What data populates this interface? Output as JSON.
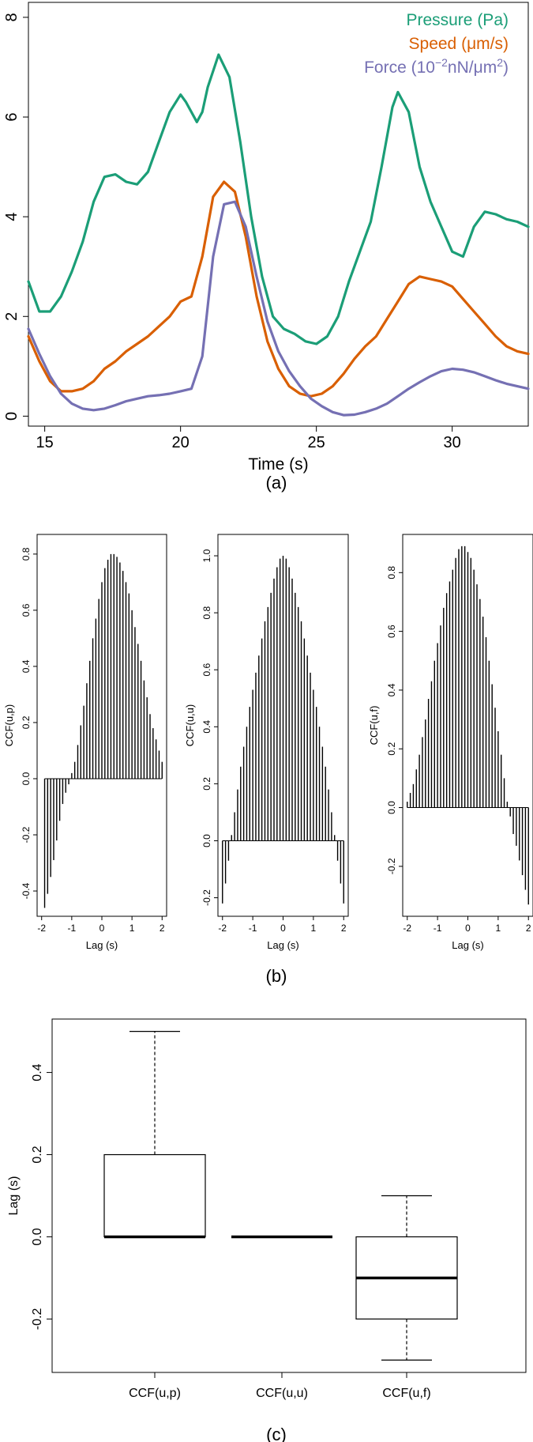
{
  "panel_labels": [
    "(a)",
    "(b)",
    "(c)"
  ],
  "chart_data": [
    {
      "type": "line",
      "xlabel": "Time (s)",
      "ylabel": "",
      "xlim": [
        14.4,
        32.8
      ],
      "ylim": [
        -0.2,
        8.3
      ],
      "xticks": [
        15,
        20,
        25,
        30
      ],
      "yticks": [
        0,
        2,
        4,
        6,
        8
      ],
      "legend_position": "top-right",
      "series": [
        {
          "name": "Pressure (Pa)",
          "color": "#1b9e77",
          "x": [
            14.4,
            14.8,
            15.2,
            15.6,
            16.0,
            16.4,
            16.8,
            17.2,
            17.6,
            18.0,
            18.4,
            18.8,
            19.2,
            19.6,
            20.0,
            20.2,
            20.6,
            20.8,
            21.0,
            21.4,
            21.8,
            22.2,
            22.6,
            23.0,
            23.4,
            23.8,
            24.2,
            24.6,
            25.0,
            25.4,
            25.8,
            26.2,
            26.6,
            27.0,
            27.4,
            27.8,
            28.0,
            28.4,
            28.8,
            29.2,
            29.6,
            30.0,
            30.4,
            30.8,
            31.2,
            31.6,
            32.0,
            32.4,
            32.8
          ],
          "y": [
            2.7,
            2.1,
            2.1,
            2.4,
            2.9,
            3.5,
            4.3,
            4.8,
            4.85,
            4.7,
            4.65,
            4.9,
            5.5,
            6.1,
            6.45,
            6.3,
            5.9,
            6.1,
            6.6,
            7.25,
            6.8,
            5.5,
            4.0,
            2.8,
            2.0,
            1.75,
            1.65,
            1.5,
            1.45,
            1.6,
            2.0,
            2.7,
            3.3,
            3.9,
            5.0,
            6.2,
            6.5,
            6.1,
            5.0,
            4.3,
            3.8,
            3.3,
            3.2,
            3.8,
            4.1,
            4.05,
            3.95,
            3.9,
            3.8
          ]
        },
        {
          "name": "Speed (μm/s)",
          "color": "#d95f02",
          "x": [
            14.4,
            14.8,
            15.2,
            15.6,
            16.0,
            16.4,
            16.8,
            17.2,
            17.6,
            18.0,
            18.4,
            18.8,
            19.2,
            19.6,
            20.0,
            20.4,
            20.8,
            21.2,
            21.6,
            22.0,
            22.4,
            22.8,
            23.2,
            23.6,
            24.0,
            24.4,
            24.8,
            25.2,
            25.6,
            26.0,
            26.4,
            26.8,
            27.2,
            27.6,
            28.0,
            28.4,
            28.8,
            29.2,
            29.6,
            30.0,
            30.4,
            30.8,
            31.2,
            31.6,
            32.0,
            32.4,
            32.8
          ],
          "y": [
            1.6,
            1.1,
            0.7,
            0.5,
            0.5,
            0.55,
            0.7,
            0.95,
            1.1,
            1.3,
            1.45,
            1.6,
            1.8,
            2.0,
            2.3,
            2.4,
            3.2,
            4.4,
            4.7,
            4.5,
            3.6,
            2.4,
            1.5,
            0.95,
            0.6,
            0.45,
            0.4,
            0.45,
            0.6,
            0.85,
            1.15,
            1.4,
            1.6,
            1.95,
            2.3,
            2.65,
            2.8,
            2.75,
            2.7,
            2.6,
            2.35,
            2.1,
            1.85,
            1.6,
            1.4,
            1.3,
            1.25
          ]
        },
        {
          "name": "Force (10^-2 nN/μm^2)",
          "color": "#7570b3",
          "x": [
            14.4,
            14.8,
            15.2,
            15.6,
            16.0,
            16.4,
            16.8,
            17.2,
            17.6,
            18.0,
            18.4,
            18.8,
            19.2,
            19.6,
            20.0,
            20.4,
            20.8,
            21.2,
            21.6,
            22.0,
            22.4,
            22.8,
            23.2,
            23.6,
            24.0,
            24.4,
            24.8,
            25.2,
            25.6,
            26.0,
            26.4,
            26.8,
            27.2,
            27.6,
            28.0,
            28.4,
            28.8,
            29.2,
            29.6,
            30.0,
            30.4,
            30.8,
            31.2,
            31.6,
            32.0,
            32.4,
            32.8
          ],
          "y": [
            1.75,
            1.25,
            0.8,
            0.45,
            0.25,
            0.15,
            0.12,
            0.15,
            0.22,
            0.3,
            0.35,
            0.4,
            0.42,
            0.45,
            0.5,
            0.55,
            1.2,
            3.2,
            4.25,
            4.3,
            3.8,
            2.8,
            1.9,
            1.3,
            0.9,
            0.6,
            0.35,
            0.2,
            0.08,
            0.02,
            0.03,
            0.08,
            0.15,
            0.25,
            0.4,
            0.55,
            0.68,
            0.8,
            0.9,
            0.95,
            0.93,
            0.88,
            0.8,
            0.72,
            0.65,
            0.6,
            0.55
          ]
        }
      ]
    },
    {
      "type": "bar",
      "xlabel": "Lag (s)",
      "ylabel": "CCF(u,p)",
      "xlim": [
        -2.15,
        2.15
      ],
      "ylim": [
        -0.49,
        0.87
      ],
      "xticks": [
        -2,
        -1,
        0,
        1,
        2
      ],
      "yticks": [
        -0.4,
        -0.2,
        0.0,
        0.2,
        0.4,
        0.6,
        0.8
      ],
      "x": [
        -1.9,
        -1.8,
        -1.7,
        -1.6,
        -1.5,
        -1.4,
        -1.3,
        -1.2,
        -1.1,
        -1.0,
        -0.9,
        -0.8,
        -0.7,
        -0.6,
        -0.5,
        -0.4,
        -0.3,
        -0.2,
        -0.1,
        0.0,
        0.1,
        0.2,
        0.3,
        0.4,
        0.5,
        0.6,
        0.7,
        0.8,
        0.9,
        1.0,
        1.1,
        1.2,
        1.3,
        1.4,
        1.5,
        1.6,
        1.7,
        1.8,
        1.9,
        2.0
      ],
      "values": [
        -0.46,
        -0.41,
        -0.35,
        -0.29,
        -0.22,
        -0.15,
        -0.09,
        -0.05,
        -0.02,
        0.02,
        0.06,
        0.12,
        0.19,
        0.26,
        0.34,
        0.42,
        0.5,
        0.57,
        0.64,
        0.7,
        0.75,
        0.78,
        0.8,
        0.8,
        0.79,
        0.77,
        0.74,
        0.7,
        0.66,
        0.6,
        0.54,
        0.48,
        0.42,
        0.35,
        0.29,
        0.23,
        0.18,
        0.14,
        0.1,
        0.06
      ]
    },
    {
      "type": "bar",
      "xlabel": "Lag (s)",
      "ylabel": "CCF(u,u)",
      "xlim": [
        -2.15,
        2.15
      ],
      "ylim": [
        -0.265,
        1.075
      ],
      "xticks": [
        -2,
        -1,
        0,
        1,
        2
      ],
      "yticks": [
        -0.2,
        0.0,
        0.2,
        0.4,
        0.6,
        0.8,
        1.0
      ],
      "x": [
        -2.0,
        -1.9,
        -1.8,
        -1.7,
        -1.6,
        -1.5,
        -1.4,
        -1.3,
        -1.2,
        -1.1,
        -1.0,
        -0.9,
        -0.8,
        -0.7,
        -0.6,
        -0.5,
        -0.4,
        -0.3,
        -0.2,
        -0.1,
        0.0,
        0.1,
        0.2,
        0.3,
        0.4,
        0.5,
        0.6,
        0.7,
        0.8,
        0.9,
        1.0,
        1.1,
        1.2,
        1.3,
        1.4,
        1.5,
        1.6,
        1.7,
        1.8,
        1.9,
        2.0
      ],
      "values": [
        -0.22,
        -0.15,
        -0.07,
        0.02,
        0.1,
        0.18,
        0.26,
        0.33,
        0.4,
        0.47,
        0.53,
        0.59,
        0.65,
        0.71,
        0.77,
        0.82,
        0.87,
        0.92,
        0.96,
        0.99,
        1.0,
        0.99,
        0.96,
        0.92,
        0.87,
        0.82,
        0.77,
        0.71,
        0.65,
        0.59,
        0.53,
        0.47,
        0.4,
        0.33,
        0.26,
        0.18,
        0.1,
        0.02,
        -0.07,
        -0.15,
        -0.22
      ]
    },
    {
      "type": "bar",
      "xlabel": "Lag (s)",
      "ylabel": "CCF(u,f)",
      "xlim": [
        -2.15,
        2.15
      ],
      "ylim": [
        -0.37,
        0.93
      ],
      "xticks": [
        -2,
        -1,
        0,
        1,
        2
      ],
      "yticks": [
        -0.2,
        0.0,
        0.2,
        0.4,
        0.6,
        0.8
      ],
      "x": [
        -2.0,
        -1.9,
        -1.8,
        -1.7,
        -1.6,
        -1.5,
        -1.4,
        -1.3,
        -1.2,
        -1.1,
        -1.0,
        -0.9,
        -0.8,
        -0.7,
        -0.6,
        -0.5,
        -0.4,
        -0.3,
        -0.2,
        -0.1,
        0.0,
        0.1,
        0.2,
        0.3,
        0.4,
        0.5,
        0.6,
        0.7,
        0.8,
        0.9,
        1.0,
        1.1,
        1.2,
        1.3,
        1.4,
        1.5,
        1.6,
        1.7,
        1.8,
        1.9,
        2.0
      ],
      "values": [
        0.02,
        0.05,
        0.08,
        0.13,
        0.18,
        0.24,
        0.3,
        0.37,
        0.43,
        0.5,
        0.56,
        0.62,
        0.68,
        0.73,
        0.77,
        0.81,
        0.85,
        0.88,
        0.89,
        0.89,
        0.87,
        0.85,
        0.81,
        0.76,
        0.71,
        0.65,
        0.58,
        0.5,
        0.42,
        0.34,
        0.26,
        0.18,
        0.1,
        0.02,
        -0.03,
        -0.09,
        -0.13,
        -0.18,
        -0.23,
        -0.28,
        -0.33
      ]
    },
    {
      "type": "box",
      "xlabel": "",
      "ylabel": "Lag (s)",
      "ylim": [
        -0.33,
        0.53
      ],
      "yticks": [
        -0.2,
        0.0,
        0.2,
        0.4
      ],
      "categories": [
        "CCF(u,p)",
        "CCF(u,u)",
        "CCF(u,f)"
      ],
      "boxes": [
        {
          "name": "CCF(u,p)",
          "min": 0.0,
          "q1": 0.0,
          "median": 0.0,
          "q3": 0.2,
          "max": 0.5
        },
        {
          "name": "CCF(u,u)",
          "min": 0.0,
          "q1": 0.0,
          "median": 0.0,
          "q3": 0.0,
          "max": 0.0
        },
        {
          "name": "CCF(u,f)",
          "min": -0.3,
          "q1": -0.2,
          "median": -0.1,
          "q3": 0.0,
          "max": 0.1
        }
      ]
    }
  ]
}
